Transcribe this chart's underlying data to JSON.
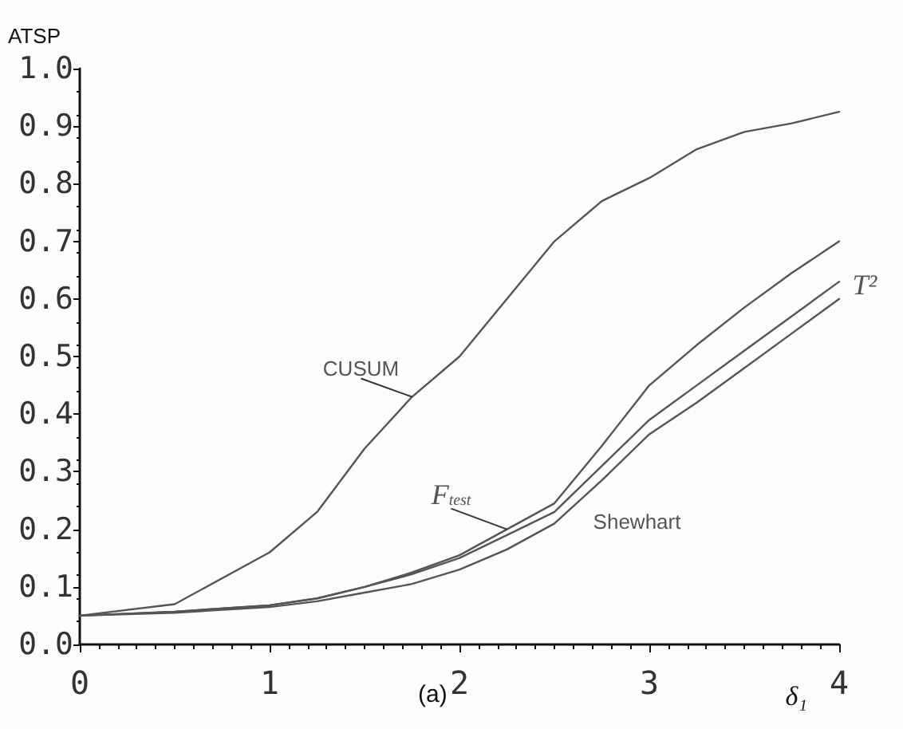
{
  "chart_data": {
    "type": "line",
    "ylabel": "ATSP",
    "xlabel": "δ₁",
    "annotations": [
      "(a)"
    ],
    "x": [
      0,
      0.5,
      1,
      1.25,
      1.5,
      1.75,
      2,
      2.25,
      2.5,
      2.75,
      3,
      3.25,
      3.5,
      3.75,
      4
    ],
    "series": [
      {
        "name": "CUSUM",
        "color": "#555555",
        "values": [
          0.05,
          0.07,
          0.16,
          0.23,
          0.34,
          0.43,
          0.5,
          0.6,
          0.7,
          0.77,
          0.81,
          0.86,
          0.89,
          0.905,
          0.925
        ]
      },
      {
        "name": "T²",
        "color": "#555555",
        "values": [
          0.05,
          0.057,
          0.068,
          0.08,
          0.1,
          0.122,
          0.15,
          0.19,
          0.23,
          0.31,
          0.39,
          0.45,
          0.51,
          0.57,
          0.63
        ]
      },
      {
        "name": "F$_{test}$",
        "color": "#555555",
        "values": [
          0.05,
          0.057,
          0.068,
          0.08,
          0.1,
          0.125,
          0.155,
          0.2,
          0.245,
          0.345,
          0.45,
          0.52,
          0.585,
          0.645,
          0.7
        ]
      },
      {
        "name": "Shewhart",
        "color": "#555555",
        "values": [
          0.05,
          0.055,
          0.065,
          0.075,
          0.09,
          0.105,
          0.13,
          0.165,
          0.21,
          0.285,
          0.365,
          0.42,
          0.48,
          0.54,
          0.6
        ]
      }
    ],
    "xlim": [
      0,
      4
    ],
    "xticks": [
      0,
      1,
      2,
      3,
      4
    ],
    "ylim": [
      0,
      1
    ],
    "yticks": [
      {
        "value": 0,
        "label": "0.0"
      },
      {
        "value": 0.1,
        "label": "0.1"
      },
      {
        "value": 0.2,
        "label": "0.2"
      },
      {
        "value": 0.3,
        "label": "0.3"
      },
      {
        "value": 0.4,
        "label": "0.4"
      },
      {
        "value": 0.5,
        "label": "0.5"
      },
      {
        "value": 0.6,
        "label": "0.6"
      },
      {
        "value": 0.7,
        "label": "0.7"
      },
      {
        "value": 0.8,
        "label": "0.8"
      },
      {
        "value": 0.9,
        "label": "0.9"
      },
      {
        "value": 1,
        "label": "1.0"
      }
    ],
    "grid": false,
    "legend": false,
    "marker": "none",
    "line_style": "solid"
  }
}
